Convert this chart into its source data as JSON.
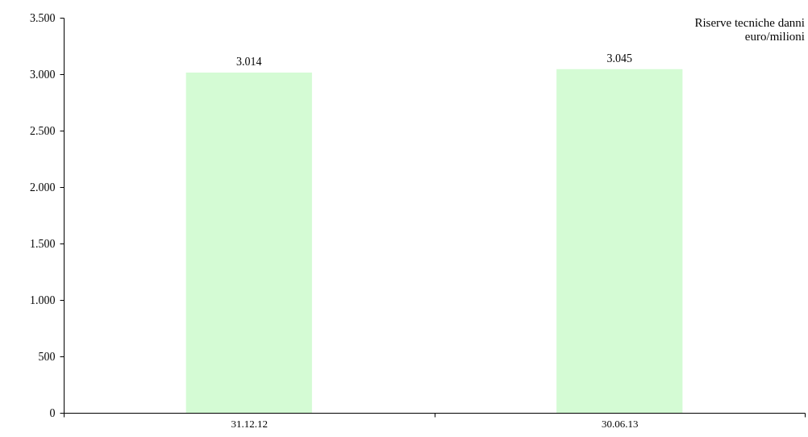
{
  "chart_data": {
    "type": "bar",
    "title": "Riserve tecniche danni",
    "subtitle": "euro/milioni",
    "categories": [
      "31.12.12",
      "30.06.13"
    ],
    "values": [
      3014,
      3045
    ],
    "value_labels": [
      "3.014",
      "3.045"
    ],
    "color": "#d4fbd4",
    "ylim": [
      0,
      3500
    ],
    "yticks": [
      0,
      500,
      {
        "value": 1000,
        "label": "1.000"
      },
      {
        "value": 1500,
        "label": "1.500"
      },
      {
        "value": 2000,
        "label": "2.000"
      },
      {
        "value": 2500,
        "label": "2.500"
      },
      {
        "value": 3000,
        "label": "3.000"
      },
      {
        "value": 3500,
        "label": "3.500"
      }
    ],
    "grid": false
  }
}
